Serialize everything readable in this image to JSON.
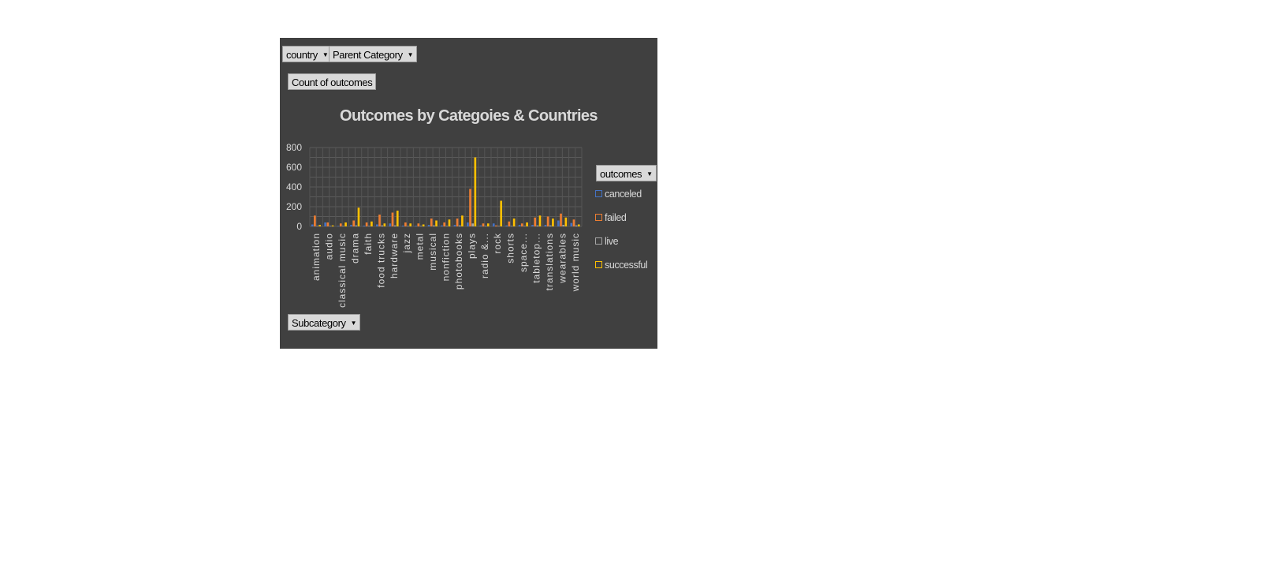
{
  "filters": {
    "country": "country",
    "parent_category": "Parent Category",
    "values_field": "Count of outcomes",
    "axis_field": "Subcategory",
    "legend_field": "outcomes"
  },
  "chart_data": {
    "type": "bar",
    "title": "Outcomes by Categoies & Countries",
    "xlabel": "",
    "ylabel": "",
    "ylim": [
      0,
      800
    ],
    "yticks": [
      0,
      200,
      400,
      600,
      800
    ],
    "grid": true,
    "legend_position": "right",
    "categories": [
      "animation",
      "audio",
      "classical music",
      "drama",
      "faith",
      "food trucks",
      "hardware",
      "jazz",
      "metal",
      "musical",
      "nonfiction",
      "photobooks",
      "plays",
      "radio &...",
      "rock",
      "shorts",
      "space...",
      "tabletop...",
      "translations",
      "wearables",
      "world music"
    ],
    "series": [
      {
        "name": "canceled",
        "color": "#4472c4",
        "values": [
          20,
          40,
          5,
          15,
          8,
          20,
          30,
          8,
          6,
          15,
          10,
          15,
          40,
          10,
          30,
          10,
          15,
          15,
          15,
          60,
          35
        ]
      },
      {
        "name": "failed",
        "color": "#ed7d31",
        "values": [
          110,
          40,
          30,
          60,
          40,
          120,
          140,
          40,
          30,
          80,
          40,
          80,
          380,
          30,
          10,
          50,
          30,
          90,
          100,
          130,
          70
        ]
      },
      {
        "name": "live",
        "color": "#a5a5a5",
        "values": [
          5,
          5,
          5,
          10,
          5,
          10,
          10,
          5,
          5,
          10,
          5,
          10,
          30,
          5,
          5,
          5,
          5,
          10,
          10,
          15,
          10
        ]
      },
      {
        "name": "successful",
        "color": "#ffc000",
        "values": [
          15,
          10,
          40,
          190,
          50,
          30,
          160,
          30,
          20,
          60,
          70,
          110,
          700,
          30,
          260,
          80,
          40,
          110,
          80,
          90,
          20
        ]
      }
    ]
  }
}
